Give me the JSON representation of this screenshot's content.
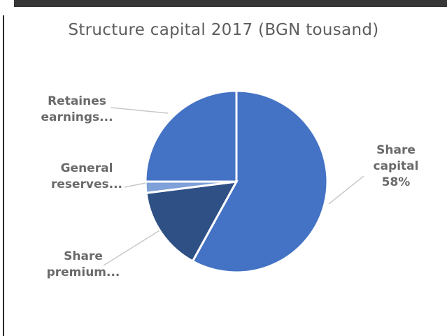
{
  "chart_data": {
    "type": "pie",
    "title": "Structure capital 2017 (BGN tousand)",
    "slices": [
      {
        "label": [
          "Share",
          "capital",
          "58%"
        ],
        "value": 58,
        "color": "#4472c4"
      },
      {
        "label": [
          "Share",
          "premium..."
        ],
        "value": 15,
        "color": "#2f5085"
      },
      {
        "label": [
          "General",
          "reserves..."
        ],
        "value": 2,
        "color": "#7fa0d8"
      },
      {
        "label": [
          "Retaines",
          "earnings..."
        ],
        "value": 25,
        "color": "#4472c4"
      }
    ],
    "start_angle_deg": 0,
    "direction": "clockwise",
    "legend": "none",
    "data_labels": "outside with leader lines"
  }
}
